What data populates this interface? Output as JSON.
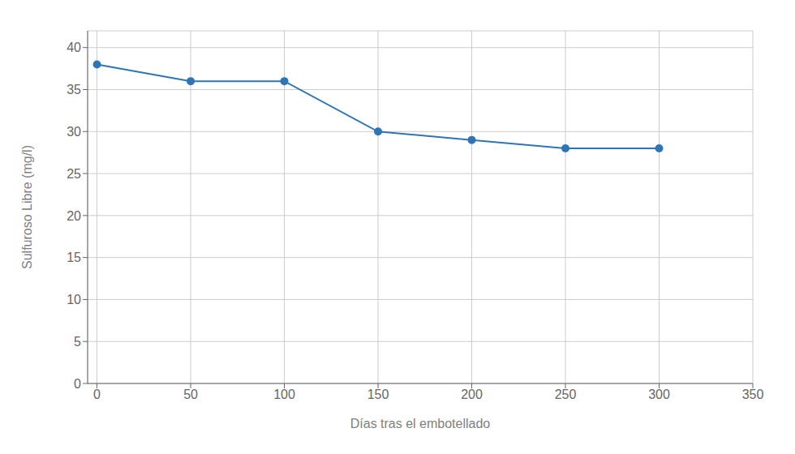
{
  "chart_data": {
    "type": "line",
    "x": [
      0,
      50,
      100,
      150,
      200,
      250,
      300
    ],
    "values": [
      38,
      36,
      36,
      30,
      29,
      28,
      28
    ],
    "color": "#2e75b6",
    "marker": "circle",
    "xlabel": "Días tras el embotellado",
    "ylabel": "Sulfuroso Libre (mg/l)",
    "xlim": [
      -5,
      350
    ],
    "ylim": [
      0,
      42
    ],
    "xticks": [
      0,
      50,
      100,
      150,
      200,
      250,
      300,
      350
    ],
    "yticks": [
      0,
      5,
      10,
      15,
      20,
      25,
      30,
      35,
      40
    ],
    "grid": true
  }
}
